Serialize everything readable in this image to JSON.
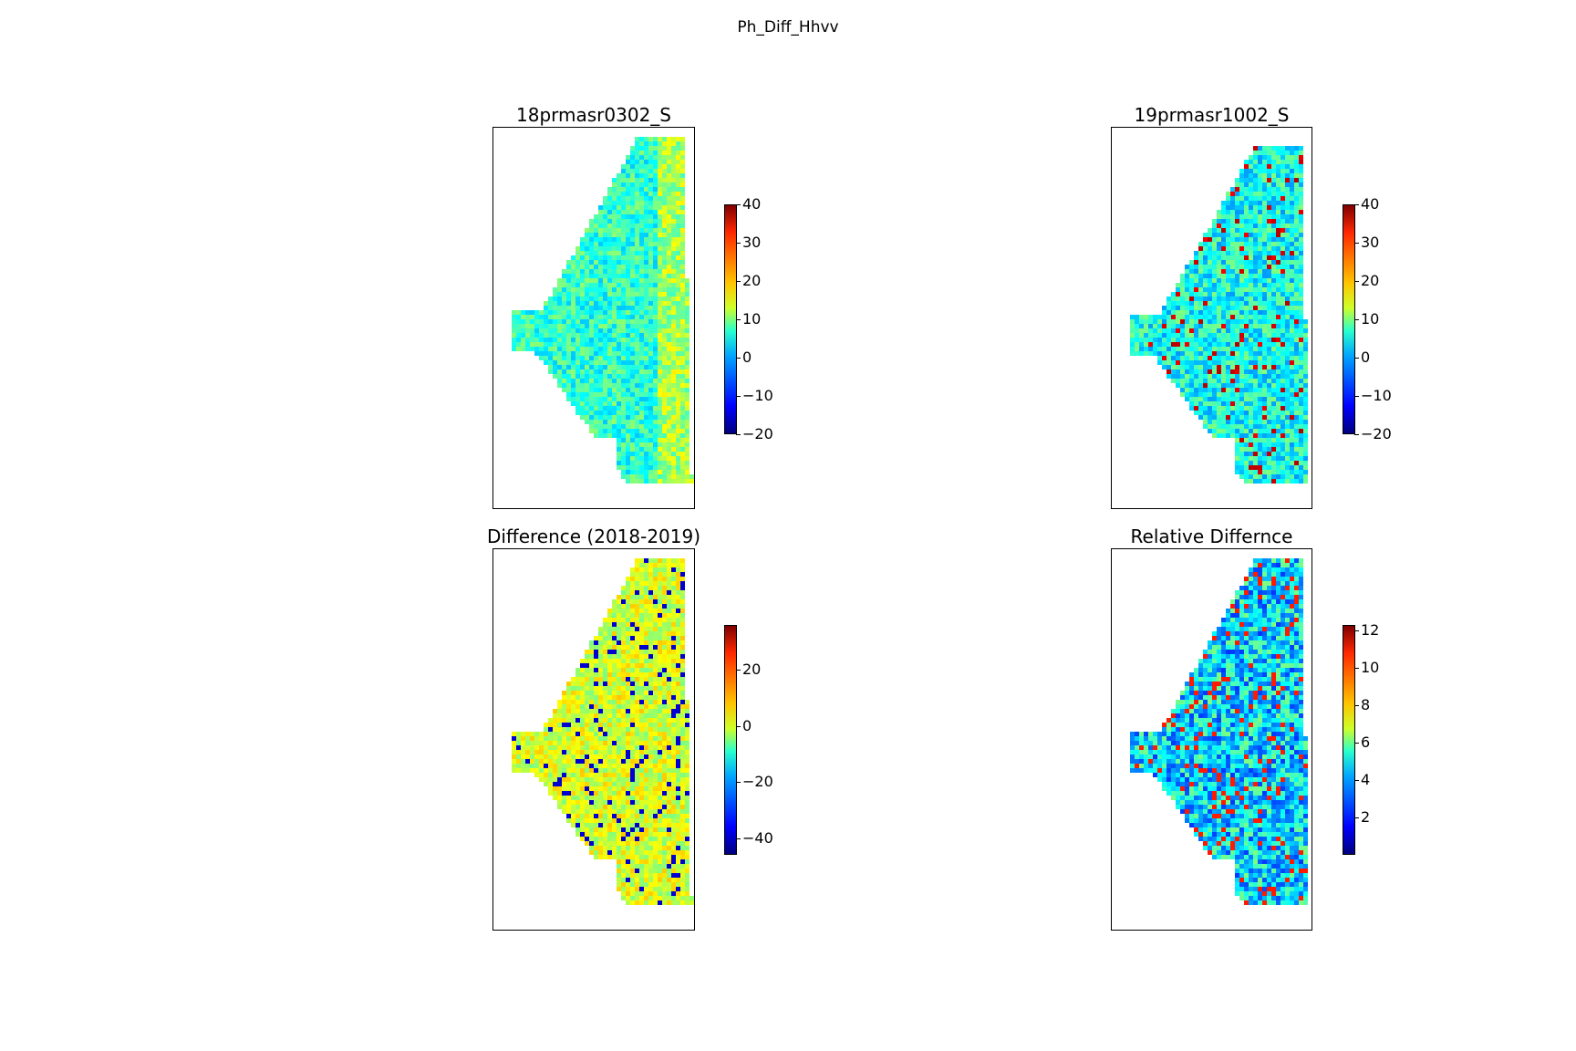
{
  "figure": {
    "suptitle": "Ph_Diff_Hhvv"
  },
  "chart_data": [
    {
      "type": "heatmap",
      "title": "18prmasr0302_S",
      "colormap": "jet",
      "colorbar": {
        "min": -20,
        "max": 40,
        "ticks": [
          40,
          30,
          20,
          10,
          0,
          -10,
          -20
        ],
        "tick_labels": [
          "40",
          "30",
          "20",
          "10",
          "0",
          "−10",
          "−20"
        ]
      },
      "xaxis_ticks": false,
      "yaxis_ticks": false
    },
    {
      "type": "heatmap",
      "title": "19prmasr1002_S",
      "colormap": "jet",
      "colorbar": {
        "min": -20,
        "max": 40,
        "ticks": [
          40,
          30,
          20,
          10,
          0,
          -10,
          -20
        ],
        "tick_labels": [
          "40",
          "30",
          "20",
          "10",
          "0",
          "−10",
          "−20"
        ]
      },
      "xaxis_ticks": false,
      "yaxis_ticks": false
    },
    {
      "type": "heatmap",
      "title": "Difference (2018-2019)",
      "colormap": "jet",
      "colorbar": {
        "min": -46,
        "max": 36,
        "ticks": [
          20,
          0,
          -20,
          -40
        ],
        "tick_labels": [
          "20",
          "0",
          "−20",
          "−40"
        ]
      },
      "xaxis_ticks": false,
      "yaxis_ticks": false
    },
    {
      "type": "heatmap",
      "title": "Relative Differnce",
      "colormap": "jet",
      "colorbar": {
        "min": 0,
        "max": 12.3,
        "ticks": [
          12,
          10,
          8,
          6,
          4,
          2
        ],
        "tick_labels": [
          "12",
          "10",
          "8",
          "6",
          "4",
          "2"
        ]
      },
      "xaxis_ticks": false,
      "yaxis_ticks": false
    }
  ]
}
